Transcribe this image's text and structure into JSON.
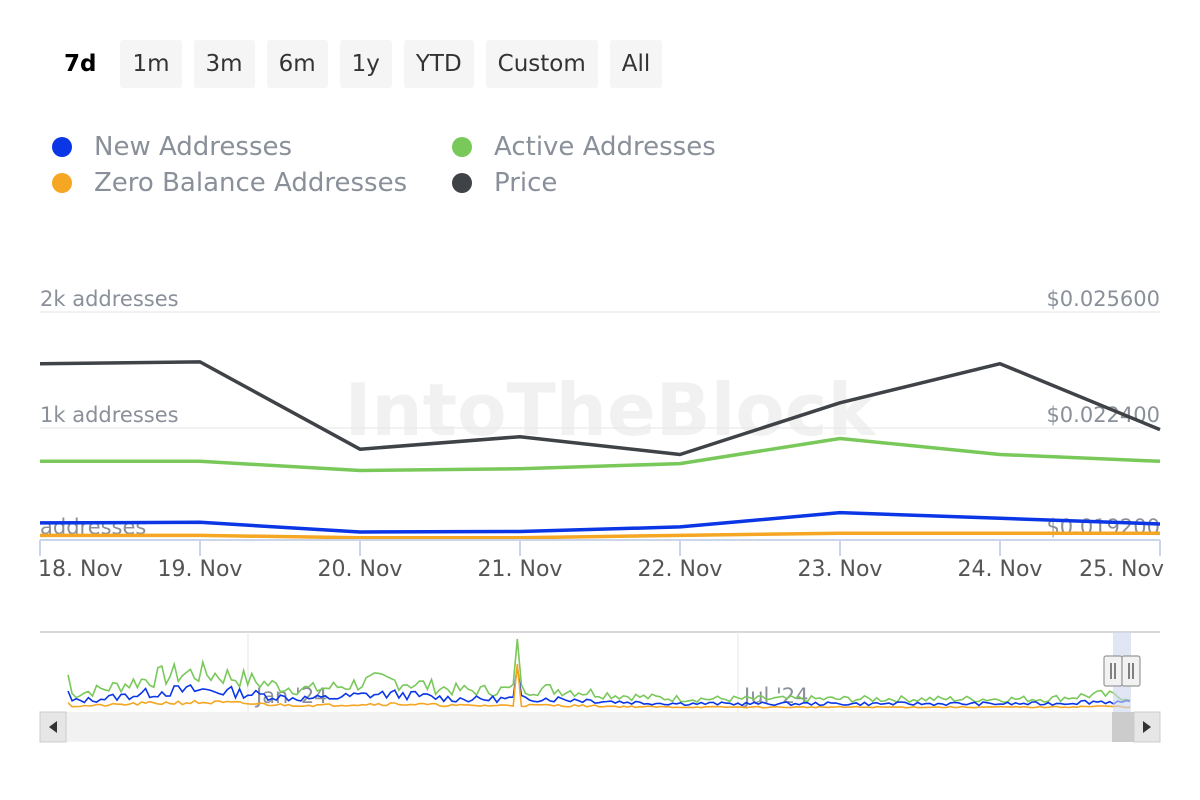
{
  "range_buttons": [
    {
      "label": "7d",
      "active": true
    },
    {
      "label": "1m",
      "active": false
    },
    {
      "label": "3m",
      "active": false
    },
    {
      "label": "6m",
      "active": false
    },
    {
      "label": "1y",
      "active": false
    },
    {
      "label": "YTD",
      "active": false
    },
    {
      "label": "Custom",
      "active": false
    },
    {
      "label": "All",
      "active": false
    }
  ],
  "watermark": "IntoTheBlock",
  "chart_data": {
    "type": "line",
    "x": [
      "18. Nov",
      "19. Nov",
      "20. Nov",
      "21. Nov",
      "22. Nov",
      "23. Nov",
      "24. Nov",
      "25. Nov"
    ],
    "left_axis": {
      "ticks": [
        "2k addresses",
        "1k addresses",
        "addresses"
      ],
      "ylim": [
        0,
        2000
      ]
    },
    "right_axis": {
      "ticks": [
        "$0.025600",
        "$0.022400",
        "$0.019200"
      ],
      "ylim": [
        0.0192,
        0.0256
      ]
    },
    "grid": true,
    "legend_position": "top-left",
    "series": [
      {
        "name": "New Addresses",
        "axis": "left",
        "color": "#0a36e6",
        "values": [
          150,
          155,
          70,
          75,
          115,
          240,
          190,
          140
        ]
      },
      {
        "name": "Active Addresses",
        "axis": "left",
        "color": "#79c85a",
        "values": [
          690,
          690,
          610,
          625,
          670,
          890,
          750,
          690
        ]
      },
      {
        "name": "Zero Balance Addresses",
        "axis": "left",
        "color": "#f5a623",
        "values": [
          40,
          40,
          20,
          20,
          40,
          60,
          60,
          60
        ]
      },
      {
        "name": "Price",
        "axis": "right",
        "color": "#3f4347",
        "values": [
          0.02415,
          0.0242,
          0.02175,
          0.0221,
          0.0216,
          0.02305,
          0.02415,
          0.0223
        ]
      }
    ]
  },
  "navigator": {
    "labels": [
      "Jan '24",
      "Jul '24"
    ]
  }
}
